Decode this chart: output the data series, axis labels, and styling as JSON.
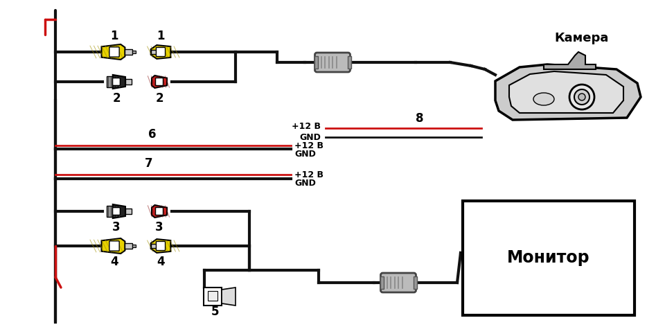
{
  "bg_color": "#ffffff",
  "fig_width": 9.6,
  "fig_height": 4.72,
  "labels": {
    "camera": "Камера",
    "monitor": "Монитор",
    "plus12v": "+12 В",
    "gnd": "GND",
    "n1": "1",
    "n2": "2",
    "n3": "3",
    "n4": "4",
    "n5": "5",
    "n6": "6",
    "n7": "7",
    "n8": "8"
  },
  "colors": {
    "yellow": "#E8D200",
    "yellow_stripe": "#c8b800",
    "black_conn": "#222222",
    "red_conn": "#CC2222",
    "gray_conn": "#aaaaaa",
    "light_gray": "#cccccc",
    "mid_gray": "#999999",
    "dark_gray": "#555555",
    "wire_black": "#111111",
    "wire_red": "#CC1111",
    "white": "#ffffff",
    "outline": "#000000"
  }
}
